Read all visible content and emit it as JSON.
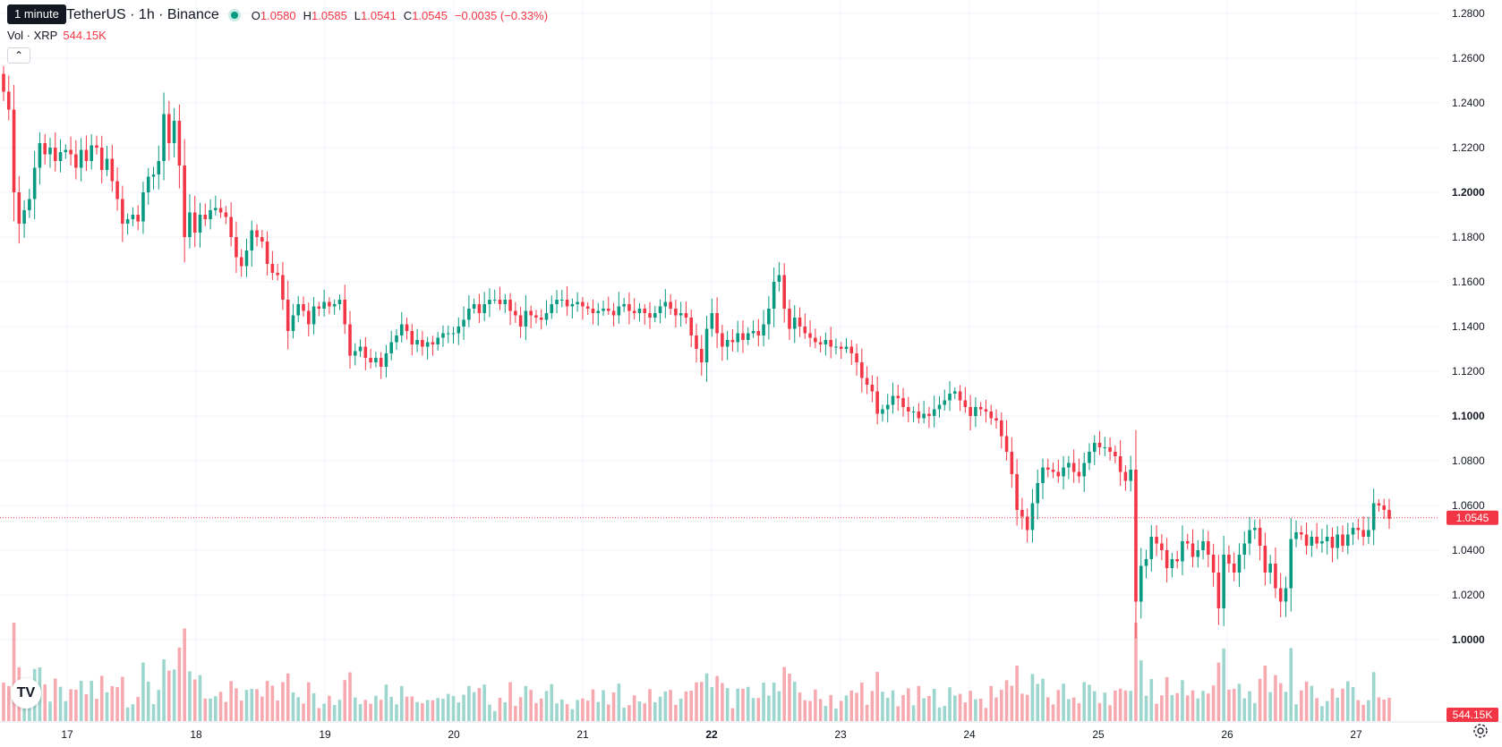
{
  "header": {
    "symbol": "TetherUS · 1h · Binance",
    "tooltip": "1 minute",
    "open_label": "O",
    "open": "1.0580",
    "high_label": "H",
    "high": "1.0585",
    "low_label": "L",
    "low": "1.0541",
    "close_label": "C",
    "close": "1.0545",
    "change": "−0.0035 (−0.33%)"
  },
  "volume": {
    "label": "Vol · XRP",
    "value": "544.15K"
  },
  "collapse_icon": "chevron-up-icon",
  "price_tag": "1.0545",
  "volume_tag": "544.15K",
  "colors": {
    "up": "#089981",
    "down": "#f23645",
    "up_vol": "#9dd6ce",
    "down_vol": "#f7a9b0",
    "grid": "#f0f3fa"
  },
  "chart_data": {
    "type": "candlestick",
    "interval": "1h",
    "y_ticks": [
      "1.2800",
      "1.2600",
      "1.2400",
      "1.2200",
      "1.2000",
      "1.1800",
      "1.1600",
      "1.1400",
      "1.1200",
      "1.1000",
      "1.0800",
      "1.0600",
      "1.0400",
      "1.0200",
      "1.0000"
    ],
    "x_ticks": [
      "17",
      "18",
      "19",
      "20",
      "21",
      "22",
      "23",
      "24",
      "25",
      "26",
      "27"
    ],
    "ylim": [
      0.985,
      1.289
    ],
    "last_price": 1.0545,
    "closes": [
      1.245,
      1.237,
      1.2,
      1.186,
      1.192,
      1.197,
      1.211,
      1.222,
      1.217,
      1.22,
      1.214,
      1.218,
      1.219,
      1.217,
      1.211,
      1.219,
      1.214,
      1.221,
      1.22,
      1.21,
      1.215,
      1.205,
      1.197,
      1.186,
      1.188,
      1.19,
      1.187,
      1.2,
      1.207,
      1.208,
      1.214,
      1.235,
      1.222,
      1.232,
      1.212,
      1.18,
      1.191,
      1.182,
      1.19,
      1.188,
      1.192,
      1.193,
      1.191,
      1.189,
      1.18,
      1.171,
      1.167,
      1.174,
      1.183,
      1.18,
      1.178,
      1.168,
      1.164,
      1.163,
      1.152,
      1.138,
      1.145,
      1.15,
      1.147,
      1.141,
      1.149,
      1.148,
      1.151,
      1.149,
      1.15,
      1.152,
      1.141,
      1.127,
      1.129,
      1.131,
      1.126,
      1.124,
      1.126,
      1.122,
      1.128,
      1.133,
      1.136,
      1.141,
      1.138,
      1.132,
      1.134,
      1.131,
      1.133,
      1.132,
      1.135,
      1.137,
      1.137,
      1.137,
      1.14,
      1.143,
      1.148,
      1.15,
      1.146,
      1.15,
      1.152,
      1.152,
      1.15,
      1.152,
      1.147,
      1.145,
      1.14,
      1.147,
      1.145,
      1.144,
      1.143,
      1.146,
      1.15,
      1.152,
      1.152,
      1.149,
      1.15,
      1.151,
      1.149,
      1.148,
      1.146,
      1.147,
      1.148,
      1.147,
      1.145,
      1.149,
      1.15,
      1.147,
      1.146,
      1.148,
      1.146,
      1.144,
      1.146,
      1.149,
      1.151,
      1.148,
      1.145,
      1.146,
      1.144,
      1.136,
      1.13,
      1.124,
      1.139,
      1.146,
      1.137,
      1.131,
      1.134,
      1.133,
      1.137,
      1.134,
      1.137,
      1.138,
      1.136,
      1.141,
      1.148,
      1.16,
      1.163,
      1.148,
      1.139,
      1.144,
      1.14,
      1.137,
      1.135,
      1.133,
      1.132,
      1.134,
      1.131,
      1.131,
      1.13,
      1.131,
      1.128,
      1.124,
      1.117,
      1.114,
      1.111,
      1.101,
      1.103,
      1.105,
      1.109,
      1.108,
      1.104,
      1.102,
      1.102,
      1.099,
      1.101,
      1.1,
      1.103,
      1.105,
      1.107,
      1.11,
      1.111,
      1.107,
      1.104,
      1.1,
      1.104,
      1.103,
      1.102,
      1.099,
      1.098,
      1.091,
      1.084,
      1.074,
      1.058,
      1.055,
      1.049,
      1.061,
      1.07,
      1.077,
      1.076,
      1.075,
      1.073,
      1.077,
      1.079,
      1.075,
      1.073,
      1.079,
      1.084,
      1.088,
      1.086,
      1.086,
      1.084,
      1.082,
      1.075,
      1.071,
      1.076,
      1.017,
      1.033,
      1.036,
      1.046,
      1.043,
      1.04,
      1.032,
      1.036,
      1.035,
      1.044,
      1.043,
      1.037,
      1.04,
      1.044,
      1.038,
      1.03,
      1.014,
      1.038,
      1.034,
      1.03,
      1.038,
      1.043,
      1.049,
      1.05,
      1.042,
      1.03,
      1.034,
      1.023,
      1.017,
      1.023,
      1.045,
      1.048,
      1.047,
      1.042,
      1.046,
      1.043,
      1.044,
      1.046,
      1.041,
      1.047,
      1.042,
      1.047,
      1.05,
      1.049,
      1.046,
      1.049,
      1.061,
      1.06,
      1.058,
      1.054
    ]
  },
  "logo": "TV",
  "settings_icon": "gear-icon"
}
